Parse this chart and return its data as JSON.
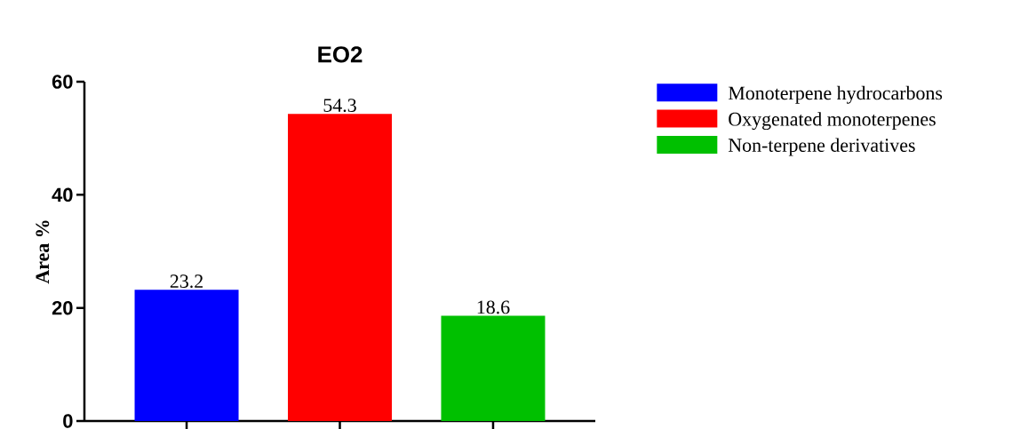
{
  "chart_data": {
    "type": "bar",
    "title": "EO2",
    "ylabel": "Area %",
    "categories": [
      null,
      null,
      null
    ],
    "series": [
      {
        "name": "Monoterpene hydrocarbons",
        "color": "#0000ff",
        "values": [
          23.2,
          null,
          null
        ]
      },
      {
        "name": "Oxygenated monoterpenes",
        "color": "#ff0000",
        "values": [
          null,
          54.3,
          null
        ]
      },
      {
        "name": "Non-terpene derivatives",
        "color": "#00c000",
        "values": [
          null,
          null,
          18.6
        ]
      }
    ],
    "ylim": [
      0,
      60
    ],
    "yticks": [
      0,
      20,
      40,
      60
    ],
    "data_labels": true,
    "legend": "top right",
    "tick_labels": "y"
  }
}
